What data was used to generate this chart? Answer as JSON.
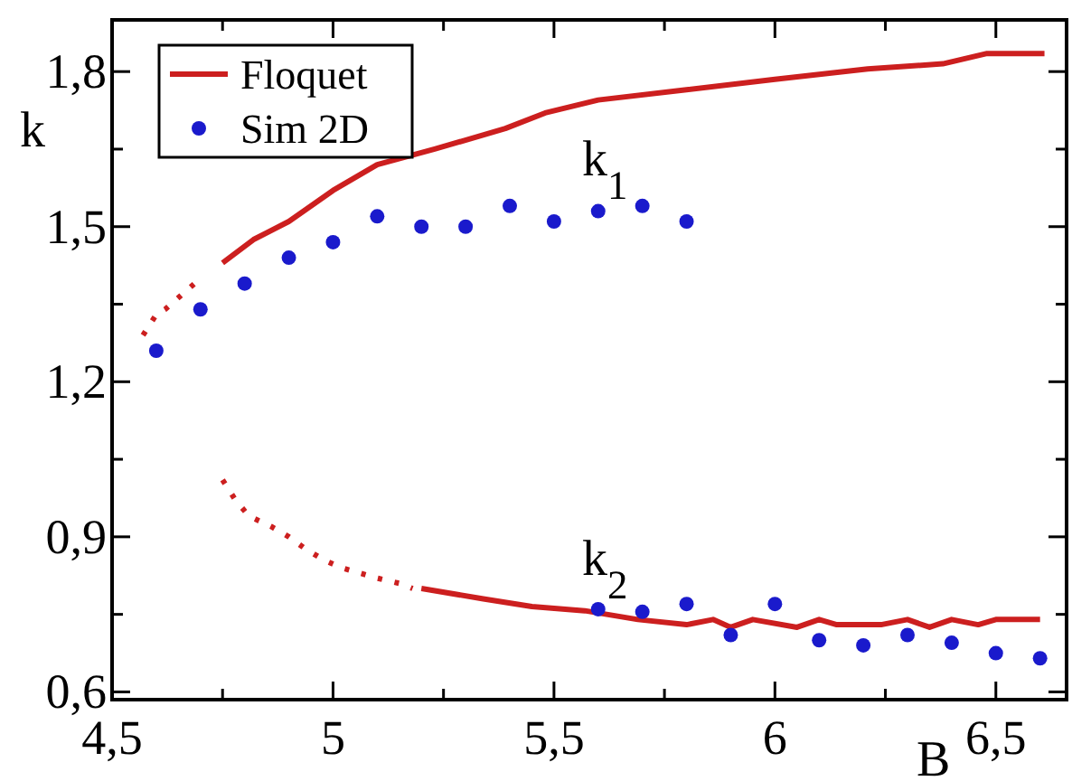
{
  "chart_data": {
    "type": "line",
    "xlabel": "B",
    "ylabel": "k",
    "xlim": [
      4.5,
      6.66
    ],
    "ylim": [
      0.585,
      1.9
    ],
    "xticks": [
      {
        "value": 4.5,
        "label": "4,5"
      },
      {
        "value": 4.75,
        "label": null
      },
      5,
      {
        "value": 5.25,
        "label": null
      },
      {
        "value": 5.5,
        "label": "5,5"
      },
      {
        "value": 5.75,
        "label": null
      },
      6,
      {
        "value": 6.25,
        "label": null
      },
      {
        "value": 6.5,
        "label": "6,5"
      }
    ],
    "yticks": [
      {
        "value": 0.6,
        "label": "0,6"
      },
      {
        "value": 0.75,
        "label": null
      },
      {
        "value": 0.9,
        "label": "0,9"
      },
      {
        "value": 1.05,
        "label": null
      },
      {
        "value": 1.2,
        "label": "1,2"
      },
      {
        "value": 1.35,
        "label": null
      },
      {
        "value": 1.5,
        "label": "1,5"
      },
      {
        "value": 1.65,
        "label": null
      },
      {
        "value": 1.8,
        "label": "1,8"
      }
    ],
    "grid": false,
    "legend": "top left",
    "annotations": [
      "k$_{1}$",
      "k$_{2}$"
    ],
    "series": [
      {
        "name": "Floquet",
        "line_style": "solid",
        "color": "#cc1f1f",
        "x": [
          4.75,
          4.82,
          4.9,
          5.0,
          5.1,
          5.23,
          5.39,
          5.48,
          5.6,
          5.8,
          6.0,
          6.21,
          6.38,
          6.48,
          6.61
        ],
        "values": [
          1.43,
          1.475,
          1.51,
          1.57,
          1.62,
          1.65,
          1.69,
          1.72,
          1.745,
          1.765,
          1.785,
          1.805,
          1.815,
          1.835,
          1.835
        ]
      },
      {
        "line_style": "dotted",
        "color": "#cc1f1f",
        "x": [
          4.57,
          4.6,
          4.62,
          4.66,
          4.7
        ],
        "values": [
          1.29,
          1.33,
          1.34,
          1.37,
          1.4
        ]
      },
      {
        "line_style": "dotted",
        "color": "#cc1f1f",
        "x": [
          4.75,
          4.78,
          4.81,
          4.86,
          4.9,
          4.94,
          4.98,
          5.02,
          5.06,
          5.1,
          5.15,
          5.18
        ],
        "values": [
          1.01,
          0.97,
          0.94,
          0.92,
          0.9,
          0.875,
          0.855,
          0.84,
          0.83,
          0.82,
          0.81,
          0.8
        ]
      },
      {
        "line_style": "solid",
        "color": "#cc1f1f",
        "x": [
          5.2,
          5.34,
          5.45,
          5.57,
          5.69,
          5.8,
          5.86,
          5.9,
          5.95,
          6.05,
          6.1,
          6.14,
          6.24,
          6.3,
          6.35,
          6.4,
          6.46,
          6.5,
          6.6
        ],
        "values": [
          0.8,
          0.78,
          0.765,
          0.757,
          0.74,
          0.73,
          0.74,
          0.725,
          0.74,
          0.725,
          0.74,
          0.73,
          0.73,
          0.74,
          0.725,
          0.74,
          0.73,
          0.74,
          0.74
        ]
      },
      {
        "name": "Sim 2D",
        "type": "scatter",
        "marker": "circle",
        "color": "#1a1acc",
        "x": [
          4.6,
          4.7,
          4.8,
          4.9,
          5.0,
          5.1,
          5.2,
          5.3,
          5.4,
          5.5,
          5.6,
          5.7,
          5.8,
          5.6,
          5.7,
          5.8,
          5.9,
          6.0,
          6.1,
          6.2,
          6.3,
          6.4,
          6.5,
          6.6
        ],
        "values": [
          1.26,
          1.34,
          1.39,
          1.44,
          1.47,
          1.52,
          1.5,
          1.5,
          1.54,
          1.51,
          1.53,
          1.54,
          1.51,
          0.76,
          0.755,
          0.77,
          0.71,
          0.77,
          0.7,
          0.69,
          0.71,
          0.695,
          0.675,
          0.665
        ]
      }
    ]
  }
}
